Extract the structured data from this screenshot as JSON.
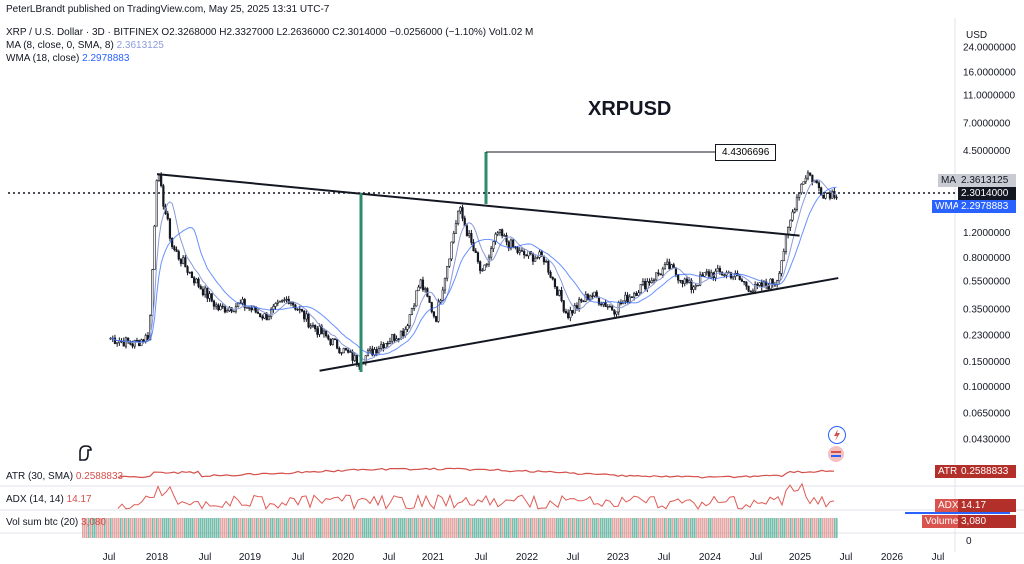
{
  "header": {
    "published": "PeterLBrandt published on TradingView.com, May 25, 2025 13:31 UTC-7",
    "symbol": "XRP / U.S. Dollar · 3D · BITFINEX",
    "ohlc": "O2.3268000  H2.3327000  L2.2636000  C2.3014000  −0.0256000 (−1.10%)  Vol1.02 M",
    "ma_label": "MA (8, close, 0, SMA, 8)",
    "ma_value": "2.3613125",
    "wma_label": "WMA (18, close)",
    "wma_value": "2.2978883"
  },
  "chart_title": "XRPUSD",
  "callout": "4.4306696",
  "currency": "USD",
  "price_badges": {
    "ma_tag": "MA",
    "ma_value": "2.3613125",
    "close_value": "2.3014000",
    "wma_tag": "WMA",
    "wma_value": "2.2978883"
  },
  "indicators": {
    "atr_label": "ATR (30, SMA)",
    "atr_value": "0.2588833",
    "atr_tag": "ATR",
    "adx_label": "ADX (14, 14)",
    "adx_value": "14.17",
    "adx_tag": "ADX",
    "vol_label": "Vol sum btc (20)",
    "vol_value": "3,080",
    "vol_tag": "Volume",
    "vol_zero": "0"
  },
  "colors": {
    "candle": "#131722",
    "ma": "#8c9bd9",
    "wma": "#2962ff",
    "trendline": "#131722",
    "measure": "#2e8b6e",
    "atr": "#d4504b",
    "adx": "#e05a55",
    "vol_green": "#4aa892",
    "vol_red": "#d98a87"
  },
  "chart_data": {
    "type": "line",
    "title": "XRPUSD",
    "y_scale": "log",
    "ylabel": "USD",
    "y_ticks": [
      "24.0000000",
      "16.0000000",
      "11.0000000",
      "7.0000000",
      "4.5000000",
      "2.3014000",
      "1.2000000",
      "0.8000000",
      "0.5500000",
      "0.3500000",
      "0.2300000",
      "0.1500000",
      "0.1000000",
      "0.0650000",
      "0.0430000"
    ],
    "x_ticks": [
      "Jul",
      "2018",
      "Jul",
      "2019",
      "Jul",
      "2020",
      "Jul",
      "2021",
      "Jul",
      "2022",
      "Jul",
      "2023",
      "Jul",
      "2024",
      "Jul",
      "2025",
      "Jul",
      "2026",
      "Jul"
    ],
    "series": [
      {
        "x": [
          "2017-07",
          "2017-10",
          "2017-12",
          "2018-01",
          "2018-03",
          "2018-06",
          "2018-09",
          "2018-12",
          "2019-03",
          "2019-06",
          "2019-09",
          "2019-12",
          "2020-03",
          "2020-06",
          "2020-09",
          "2020-11",
          "2021-01",
          "2021-04",
          "2021-07",
          "2021-09",
          "2021-12",
          "2022-03",
          "2022-06",
          "2022-09",
          "2022-12",
          "2023-03",
          "2023-07",
          "2023-10",
          "2023-12",
          "2024-03",
          "2024-06",
          "2024-09",
          "2024-11",
          "2024-12",
          "2025-01",
          "2025-03",
          "2025-05"
        ],
        "y": [
          0.22,
          0.2,
          0.23,
          3.3,
          0.95,
          0.55,
          0.35,
          0.38,
          0.31,
          0.42,
          0.27,
          0.2,
          0.15,
          0.2,
          0.25,
          0.55,
          0.3,
          1.8,
          0.6,
          1.2,
          0.85,
          0.8,
          0.32,
          0.45,
          0.35,
          0.48,
          0.7,
          0.5,
          0.62,
          0.63,
          0.48,
          0.55,
          1.6,
          2.5,
          3.2,
          2.3,
          2.3
        ]
      }
    ],
    "trendlines": [
      {
        "name": "upper",
        "from": [
          "2018-01",
          3.1
        ],
        "to": [
          "2024-12",
          1.15
        ]
      },
      {
        "name": "lower",
        "from": [
          "2019-10",
          0.13
        ],
        "to": [
          "2025-05",
          0.58
        ]
      }
    ],
    "annotations": [
      "4.4306696"
    ]
  }
}
